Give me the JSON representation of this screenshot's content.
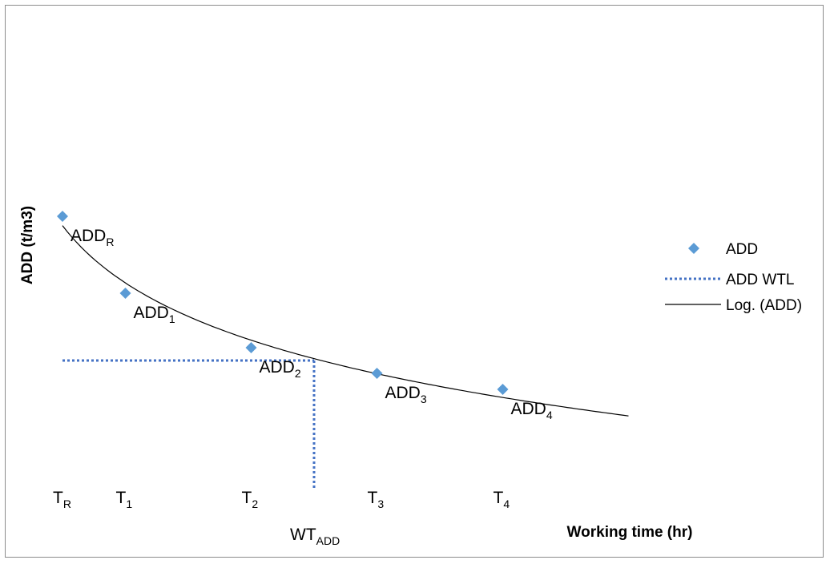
{
  "chart_data": {
    "type": "scatter",
    "xlabel": "Working time (hr)",
    "ylabel": "ADD (t/m3)",
    "points": [
      {
        "x": 0,
        "y": 0.85,
        "label": "ADD",
        "sub": "R"
      },
      {
        "x": 1,
        "y": 0.61,
        "label": "ADD",
        "sub": "1"
      },
      {
        "x": 3,
        "y": 0.44,
        "label": "ADD",
        "sub": "2"
      },
      {
        "x": 5,
        "y": 0.36,
        "label": "ADD",
        "sub": "3"
      },
      {
        "x": 7,
        "y": 0.31,
        "label": "ADD",
        "sub": "4"
      }
    ],
    "x_ticks": [
      {
        "x": 0,
        "label": "T",
        "sub": "R"
      },
      {
        "x": 1,
        "label": "T",
        "sub": "1"
      },
      {
        "x": 3,
        "label": "T",
        "sub": "2"
      },
      {
        "x": 5,
        "label": "T",
        "sub": "3"
      },
      {
        "x": 7,
        "label": "T",
        "sub": "4"
      }
    ],
    "trend": {
      "type": "log",
      "name": "Log. (ADD)",
      "x_end": 9.0
    },
    "wtl": {
      "name": "ADD WTL",
      "y": 0.4,
      "x": 4.0,
      "x_label": "WT",
      "x_label_sub": "ADD"
    },
    "xlim": [
      0,
      9.0
    ],
    "ylim": [
      0,
      1.0
    ],
    "legend_position": "right",
    "grid": false,
    "series": [
      {
        "name": "ADD",
        "color": "#5b9bd5",
        "marker": "diamond"
      },
      {
        "name": "ADD WTL",
        "color": "#4472c4",
        "style": "dotted"
      },
      {
        "name": "Log. (ADD)",
        "color": "#000000",
        "style": "solid"
      }
    ]
  }
}
